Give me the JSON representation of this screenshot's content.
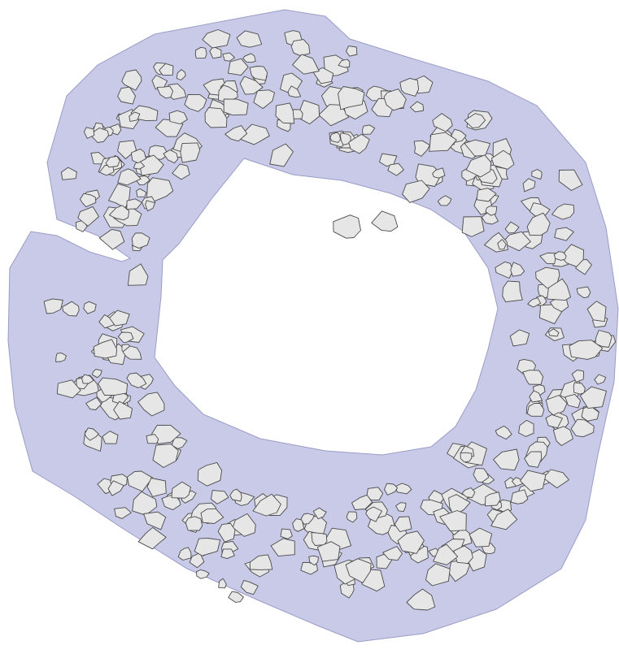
{
  "colors": {
    "background": "#ffffff",
    "region_fill": "#c8cae8",
    "region_stroke": "#9a9cc8",
    "stone_fill": "#e6e6e6",
    "stone_stroke": "#4a4a4a"
  },
  "figure": {
    "description_elements": [
      "ring-region",
      "inner-void",
      "stones"
    ]
  }
}
